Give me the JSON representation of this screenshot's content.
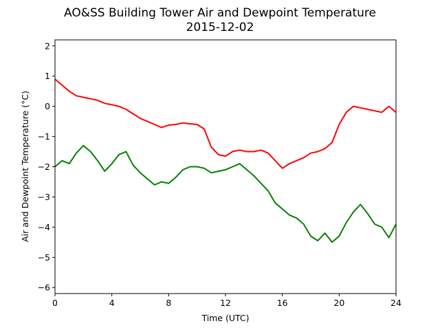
{
  "chart_data": {
    "type": "line",
    "title": "AO&SS Building Tower Air and Dewpoint Temperature",
    "subtitle": "2015-12-02",
    "xlabel": "Time (UTC)",
    "ylabel": "Air and Dewpoint Temperature (°C)",
    "xlim": [
      0,
      24
    ],
    "ylim": [
      -6.2,
      2.2
    ],
    "xticks": [
      0,
      4,
      8,
      12,
      16,
      20,
      24
    ],
    "yticks": [
      -6,
      -5,
      -4,
      -3,
      -2,
      -1,
      0,
      1,
      2
    ],
    "grid": false,
    "series": [
      {
        "color": "#ff0000",
        "x": [
          0,
          0.5,
          1,
          1.5,
          2,
          2.5,
          3,
          3.5,
          4,
          4.5,
          5,
          5.5,
          6,
          6.5,
          7,
          7.5,
          8,
          8.5,
          9,
          9.5,
          10,
          10.5,
          11,
          11.5,
          12,
          12.5,
          13,
          13.5,
          14,
          14.5,
          15,
          15.5,
          16,
          16.5,
          17,
          17.5,
          18,
          18.5,
          19,
          19.5,
          20,
          20.5,
          21,
          21.5,
          22,
          22.5,
          23,
          23.5,
          24
        ],
        "y": [
          0.9,
          0.7,
          0.5,
          0.35,
          0.3,
          0.25,
          0.2,
          0.1,
          0.05,
          0.0,
          -0.1,
          -0.25,
          -0.4,
          -0.5,
          -0.6,
          -0.7,
          -0.62,
          -0.6,
          -0.55,
          -0.58,
          -0.6,
          -0.75,
          -1.35,
          -1.6,
          -1.65,
          -1.5,
          -1.45,
          -1.5,
          -1.5,
          -1.45,
          -1.55,
          -1.8,
          -2.05,
          -1.9,
          -1.8,
          -1.7,
          -1.55,
          -1.5,
          -1.4,
          -1.2,
          -0.6,
          -0.2,
          0.0,
          -0.05,
          -0.1,
          -0.15,
          -0.2,
          0.0,
          -0.2
        ]
      },
      {
        "color": "#008000",
        "x": [
          0,
          0.5,
          1,
          1.5,
          2,
          2.5,
          3,
          3.5,
          4,
          4.5,
          5,
          5.5,
          6,
          6.5,
          7,
          7.5,
          8,
          8.5,
          9,
          9.5,
          10,
          10.5,
          11,
          11.5,
          12,
          12.5,
          13,
          13.5,
          14,
          14.5,
          15,
          15.5,
          16,
          16.5,
          17,
          17.5,
          18,
          18.5,
          19,
          19.5,
          20,
          20.5,
          21,
          21.5,
          22,
          22.5,
          23,
          23.5,
          24
        ],
        "y": [
          -2.0,
          -1.8,
          -1.9,
          -1.55,
          -1.3,
          -1.5,
          -1.8,
          -2.15,
          -1.9,
          -1.6,
          -1.5,
          -1.95,
          -2.2,
          -2.4,
          -2.6,
          -2.5,
          -2.55,
          -2.35,
          -2.1,
          -2.0,
          -2.0,
          -2.05,
          -2.2,
          -2.15,
          -2.1,
          -2.0,
          -1.9,
          -2.1,
          -2.3,
          -2.55,
          -2.8,
          -3.2,
          -3.4,
          -3.6,
          -3.7,
          -3.9,
          -4.3,
          -4.45,
          -4.2,
          -4.5,
          -4.3,
          -3.85,
          -3.5,
          -3.25,
          -3.55,
          -3.9,
          -4.0,
          -4.35,
          -3.9
        ]
      }
    ]
  }
}
